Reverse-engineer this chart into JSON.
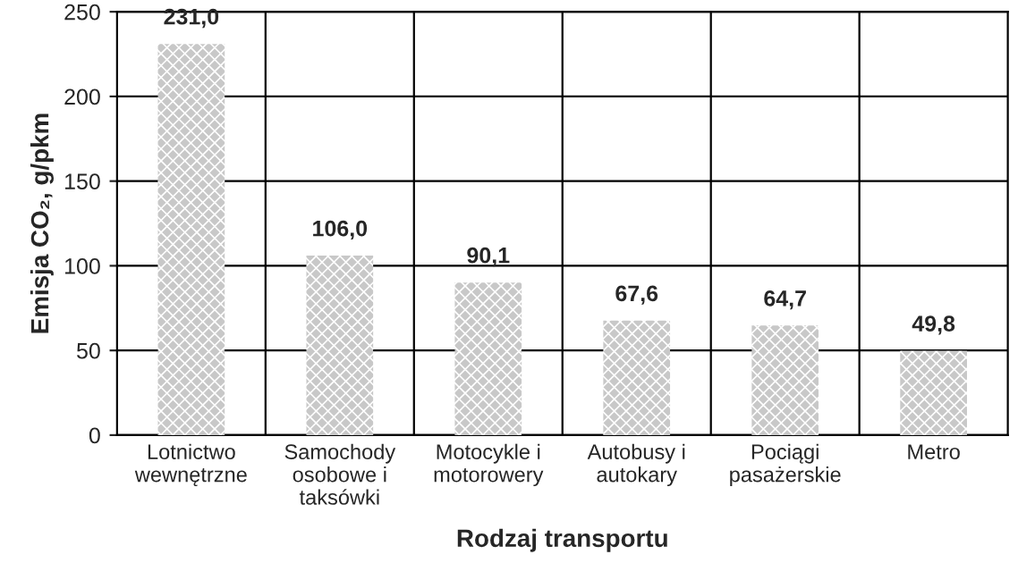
{
  "chart_data": {
    "type": "bar",
    "xlabel": "Rodzaj transportu",
    "ylabel": "Emisja CO₂, g/pkm",
    "categories": [
      "Lotnictwo\nwewnętrzne",
      "Samochody\nosobowe i\ntaksówki",
      "Motocykle i\nmotorowery",
      "Autobusy i\nautokary",
      "Pociągi\npasażerskie",
      "Metro"
    ],
    "values": [
      231.0,
      106.0,
      90.1,
      67.6,
      64.7,
      49.8
    ],
    "value_labels": [
      "231,0",
      "106,0",
      "90,1",
      "67,6",
      "64,7",
      "49,8"
    ],
    "color": "#c8c8c8",
    "ylim": [
      0,
      250
    ],
    "yticks": [
      0,
      50,
      100,
      150,
      200,
      250
    ],
    "grid": true,
    "legend": false
  }
}
